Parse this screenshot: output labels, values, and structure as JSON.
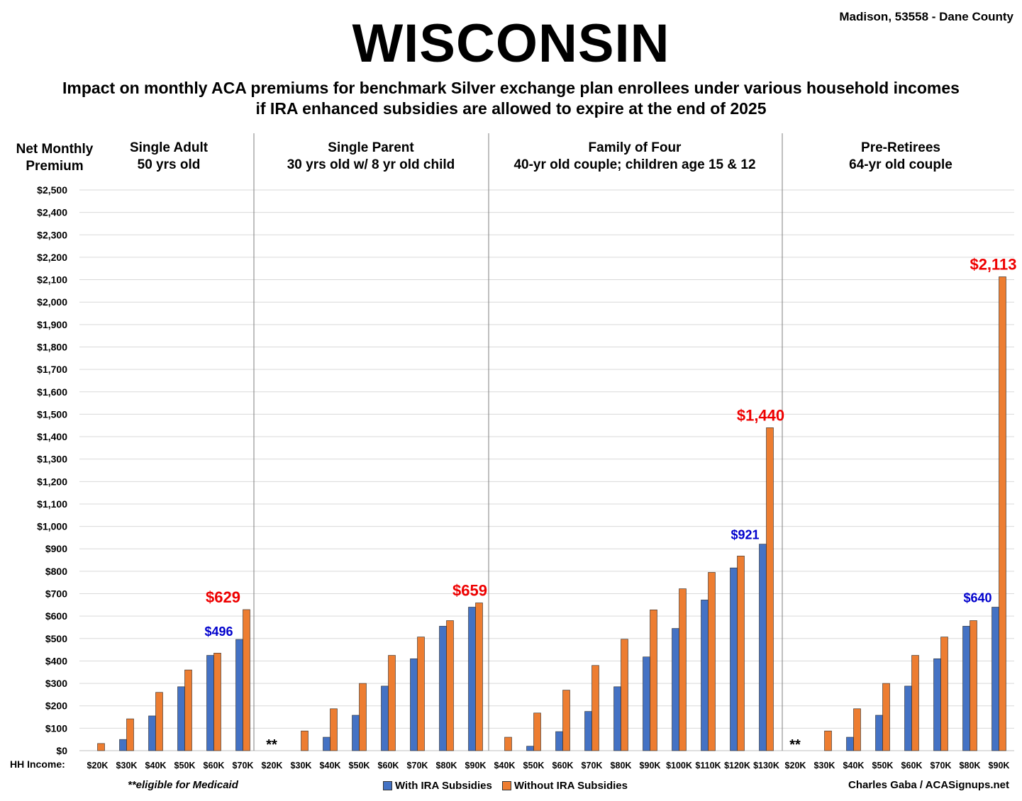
{
  "header": {
    "title": "WISCONSIN",
    "location": "Madison, 53558 - Dane County",
    "subtitle_line1": "Impact on monthly ACA premiums for benchmark Silver exchange plan enrollees under various household incomes",
    "subtitle_line2": "if IRA enhanced subsidies are allowed to expire at the end of 2025"
  },
  "ylabel_line1": "Net Monthly",
  "ylabel_line2": "Premium",
  "hh_income_label": "HH Income:",
  "footnote": "**eligible for Medicaid",
  "credit": "Charles Gaba / ACASignups.net",
  "legend": {
    "with": "With IRA Subsidies",
    "without": "Without IRA Subsidies"
  },
  "colors": {
    "with": "#4472c4",
    "without": "#ed7d31",
    "label_with": "#0000cc",
    "label_without": "#ee0000",
    "grid": "#d9d9d9"
  },
  "chart_data": {
    "type": "bar",
    "ylim": [
      0,
      2500
    ],
    "yticks": [
      "$0",
      "$100",
      "$200",
      "$300",
      "$400",
      "$500",
      "$600",
      "$700",
      "$800",
      "$900",
      "$1,000",
      "$1,100",
      "$1,200",
      "$1,300",
      "$1,400",
      "$1,500",
      "$1,600",
      "$1,700",
      "$1,800",
      "$1,900",
      "$2,000",
      "$2,100",
      "$2,200",
      "$2,300",
      "$2,400",
      "$2,500"
    ],
    "grid": true,
    "legend_position": "bottom",
    "series_names": [
      "With IRA Subsidies",
      "Without IRA Subsidies"
    ],
    "panels": [
      {
        "title_line1": "Single Adult",
        "title_line2": "50 yrs old",
        "categories": [
          "$20K",
          "$30K",
          "$40K",
          "$50K",
          "$60K",
          "$70K"
        ],
        "with": [
          0,
          50,
          155,
          285,
          425,
          496
        ],
        "without": [
          32,
          142,
          260,
          360,
          435,
          629
        ],
        "medicaid_marker": "",
        "label_with": "$496",
        "label_without": "$629"
      },
      {
        "title_line1": "Single Parent",
        "title_line2": "30 yrs old w/ 8 yr old child",
        "categories": [
          "$20K",
          "$30K",
          "$40K",
          "$50K",
          "$60K",
          "$70K",
          "$80K",
          "$90K"
        ],
        "with": [
          0,
          0,
          60,
          158,
          288,
          410,
          555,
          640
        ],
        "without": [
          0,
          88,
          187,
          300,
          425,
          507,
          580,
          659
        ],
        "medicaid_marker": "**",
        "label_with": "",
        "label_without": "$659"
      },
      {
        "title_line1": "Family of Four",
        "title_line2": "40-yr old couple; children age 15 & 12",
        "categories": [
          "$40K",
          "$50K",
          "$60K",
          "$70K",
          "$80K",
          "$90K",
          "$100K",
          "$110K",
          "$120K",
          "$130K"
        ],
        "with": [
          0,
          20,
          85,
          175,
          285,
          418,
          545,
          672,
          815,
          921
        ],
        "without": [
          60,
          168,
          270,
          380,
          497,
          628,
          722,
          795,
          868,
          1440
        ],
        "medicaid_marker": "",
        "label_with": "$921",
        "label_without": "$1,440"
      },
      {
        "title_line1": "Pre-Retirees",
        "title_line2": "64-yr old couple",
        "categories": [
          "$20K",
          "$30K",
          "$40K",
          "$50K",
          "$60K",
          "$70K",
          "$80K",
          "$90K"
        ],
        "with": [
          0,
          0,
          60,
          158,
          288,
          410,
          555,
          640
        ],
        "without": [
          0,
          88,
          187,
          300,
          425,
          507,
          580,
          2113
        ],
        "medicaid_marker": "**",
        "label_with": "$640",
        "label_without": "$2,113"
      }
    ]
  }
}
